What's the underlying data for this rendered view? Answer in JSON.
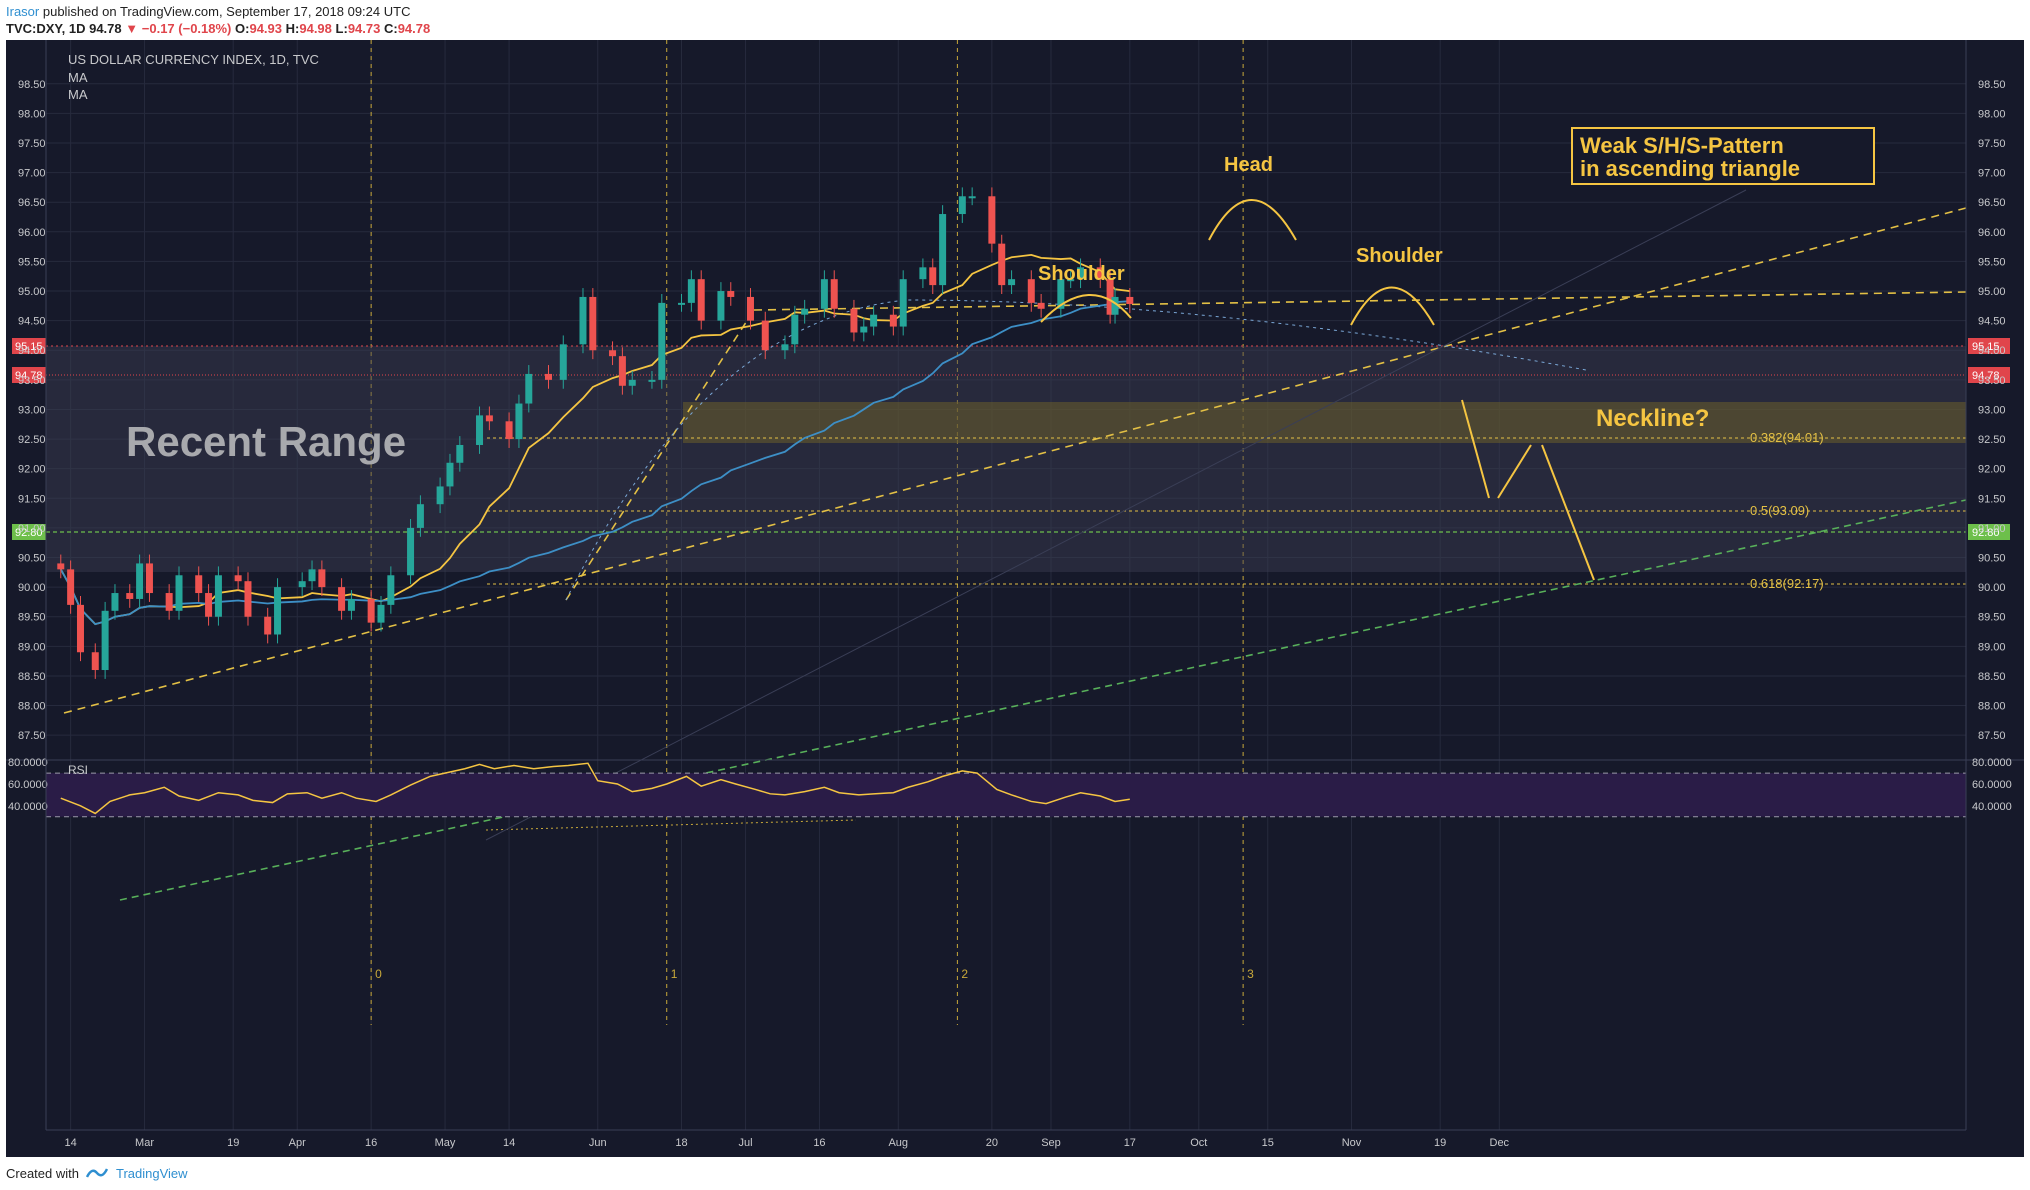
{
  "header": {
    "author": "Irasor",
    "published": "published on TradingView.com, September 17, 2018 09:24 UTC",
    "symbol": "TVC:DXY, 1D",
    "last": "94.78",
    "change": "−0.17 (−0.18%)",
    "o_label": "O:",
    "o_value": "94.93",
    "h_label": "H:",
    "h_value": "94.98",
    "l_label": "L:",
    "l_value": "94.73",
    "c_label": "C:",
    "c_value": "94.78"
  },
  "legend": {
    "title": "US DOLLAR CURRENCY INDEX, 1D, TVC",
    "ma1": "MA",
    "ma2": "MA"
  },
  "footer": {
    "created_with": "Created with",
    "brand": "TradingView"
  },
  "colors": {
    "background": "#16192a",
    "bull": "#26a69a",
    "bear": "#ef5350",
    "ma_fast": "#f5c542",
    "ma_slow": "#3d8fc6",
    "annotation": "#f5c542",
    "rsi_band": "#2a1c47"
  },
  "chart_data": [
    {
      "type": "candlestick",
      "title": "US DOLLAR CURRENCY INDEX, 1D, TVC",
      "ylim": [
        87.3,
        98.8
      ],
      "x_range": [
        "2018-02-09",
        "2018-12-05"
      ],
      "y_ticks": [
        "98.50",
        "98.00",
        "97.50",
        "97.00",
        "96.50",
        "96.00",
        "95.50",
        "95.00",
        "94.50",
        "94.00",
        "93.50",
        "93.00",
        "92.50",
        "92.00",
        "91.50",
        "91.00",
        "90.50",
        "90.00",
        "89.50",
        "89.00",
        "88.50",
        "88.00",
        "87.50"
      ],
      "x_ticks": [
        {
          "date": "2018-02-14",
          "label": "14"
        },
        {
          "date": "2018-03-01",
          "label": "Mar"
        },
        {
          "date": "2018-03-19",
          "label": "19"
        },
        {
          "date": "2018-04-01",
          "label": "Apr"
        },
        {
          "date": "2018-04-16",
          "label": "16"
        },
        {
          "date": "2018-05-01",
          "label": "May"
        },
        {
          "date": "2018-05-14",
          "label": "14"
        },
        {
          "date": "2018-06-01",
          "label": "Jun"
        },
        {
          "date": "2018-06-18",
          "label": "18"
        },
        {
          "date": "2018-07-01",
          "label": "Jul"
        },
        {
          "date": "2018-07-16",
          "label": "16"
        },
        {
          "date": "2018-08-01",
          "label": "Aug"
        },
        {
          "date": "2018-08-20",
          "label": "20"
        },
        {
          "date": "2018-09-01",
          "label": "Sep"
        },
        {
          "date": "2018-09-17",
          "label": "17"
        },
        {
          "date": "2018-10-01",
          "label": "Oct"
        },
        {
          "date": "2018-10-15",
          "label": "15"
        },
        {
          "date": "2018-11-01",
          "label": "Nov"
        },
        {
          "date": "2018-11-19",
          "label": "19"
        },
        {
          "date": "2018-12-01",
          "label": "Dec"
        }
      ],
      "series_close": [
        [
          "2018-02-12",
          90.3
        ],
        [
          "2018-02-14",
          89.7
        ],
        [
          "2018-02-16",
          88.9
        ],
        [
          "2018-02-19",
          88.6
        ],
        [
          "2018-02-21",
          89.6
        ],
        [
          "2018-02-23",
          89.9
        ],
        [
          "2018-02-26",
          89.8
        ],
        [
          "2018-02-28",
          90.4
        ],
        [
          "2018-03-02",
          89.9
        ],
        [
          "2018-03-06",
          89.6
        ],
        [
          "2018-03-08",
          90.2
        ],
        [
          "2018-03-12",
          89.9
        ],
        [
          "2018-03-14",
          89.5
        ],
        [
          "2018-03-16",
          90.2
        ],
        [
          "2018-03-20",
          90.1
        ],
        [
          "2018-03-22",
          89.5
        ],
        [
          "2018-03-26",
          89.2
        ],
        [
          "2018-03-28",
          90.0
        ],
        [
          "2018-04-02",
          90.1
        ],
        [
          "2018-04-04",
          90.3
        ],
        [
          "2018-04-06",
          90.0
        ],
        [
          "2018-04-10",
          89.6
        ],
        [
          "2018-04-12",
          89.8
        ],
        [
          "2018-04-16",
          89.4
        ],
        [
          "2018-04-18",
          89.7
        ],
        [
          "2018-04-20",
          90.2
        ],
        [
          "2018-04-24",
          91.0
        ],
        [
          "2018-04-26",
          91.4
        ],
        [
          "2018-04-30",
          91.7
        ],
        [
          "2018-05-02",
          92.1
        ],
        [
          "2018-05-04",
          92.4
        ],
        [
          "2018-05-08",
          92.9
        ],
        [
          "2018-05-10",
          92.8
        ],
        [
          "2018-05-14",
          92.5
        ],
        [
          "2018-05-16",
          93.1
        ],
        [
          "2018-05-18",
          93.6
        ],
        [
          "2018-05-22",
          93.5
        ],
        [
          "2018-05-25",
          94.1
        ],
        [
          "2018-05-29",
          94.9
        ],
        [
          "2018-05-31",
          94.0
        ],
        [
          "2018-06-04",
          93.9
        ],
        [
          "2018-06-06",
          93.4
        ],
        [
          "2018-06-08",
          93.5
        ],
        [
          "2018-06-12",
          93.5
        ],
        [
          "2018-06-14",
          94.8
        ],
        [
          "2018-06-18",
          94.8
        ],
        [
          "2018-06-20",
          95.2
        ],
        [
          "2018-06-22",
          94.5
        ],
        [
          "2018-06-26",
          95.0
        ],
        [
          "2018-06-28",
          94.9
        ],
        [
          "2018-07-02",
          94.5
        ],
        [
          "2018-07-05",
          94.0
        ],
        [
          "2018-07-09",
          94.1
        ],
        [
          "2018-07-11",
          94.6
        ],
        [
          "2018-07-13",
          94.7
        ],
        [
          "2018-07-17",
          95.2
        ],
        [
          "2018-07-19",
          94.7
        ],
        [
          "2018-07-23",
          94.3
        ],
        [
          "2018-07-25",
          94.4
        ],
        [
          "2018-07-27",
          94.6
        ],
        [
          "2018-07-31",
          94.4
        ],
        [
          "2018-08-02",
          95.2
        ],
        [
          "2018-08-06",
          95.4
        ],
        [
          "2018-08-08",
          95.1
        ],
        [
          "2018-08-10",
          96.3
        ],
        [
          "2018-08-14",
          96.6
        ],
        [
          "2018-08-16",
          96.6
        ],
        [
          "2018-08-20",
          95.8
        ],
        [
          "2018-08-22",
          95.1
        ],
        [
          "2018-08-24",
          95.2
        ],
        [
          "2018-08-28",
          94.8
        ],
        [
          "2018-08-30",
          94.7
        ],
        [
          "2018-09-03",
          95.2
        ],
        [
          "2018-09-05",
          95.2
        ],
        [
          "2018-09-07",
          95.4
        ],
        [
          "2018-09-11",
          95.2
        ],
        [
          "2018-09-13",
          94.6
        ],
        [
          "2018-09-14",
          94.9
        ],
        [
          "2018-09-17",
          94.78
        ]
      ]
    },
    {
      "type": "line",
      "title": "RSI",
      "ylim": [
        27,
        82
      ],
      "y_ticks": [
        "80.0000",
        "60.0000",
        "40.0000"
      ],
      "levels": [
        70,
        30
      ],
      "values": [
        [
          "2018-02-12",
          47
        ],
        [
          "2018-02-16",
          40
        ],
        [
          "2018-02-19",
          33
        ],
        [
          "2018-02-22",
          44
        ],
        [
          "2018-02-26",
          50
        ],
        [
          "2018-03-01",
          52
        ],
        [
          "2018-03-05",
          57
        ],
        [
          "2018-03-08",
          49
        ],
        [
          "2018-03-12",
          45
        ],
        [
          "2018-03-16",
          52
        ],
        [
          "2018-03-20",
          50
        ],
        [
          "2018-03-23",
          45
        ],
        [
          "2018-03-27",
          43
        ],
        [
          "2018-03-30",
          51
        ],
        [
          "2018-04-03",
          52
        ],
        [
          "2018-04-06",
          47
        ],
        [
          "2018-04-10",
          52
        ],
        [
          "2018-04-13",
          47
        ],
        [
          "2018-04-17",
          44
        ],
        [
          "2018-04-20",
          50
        ],
        [
          "2018-04-24",
          59
        ],
        [
          "2018-04-28",
          67
        ],
        [
          "2018-05-02",
          71
        ],
        [
          "2018-05-05",
          74
        ],
        [
          "2018-05-08",
          78
        ],
        [
          "2018-05-11",
          74
        ],
        [
          "2018-05-15",
          77
        ],
        [
          "2018-05-19",
          74
        ],
        [
          "2018-05-23",
          76
        ],
        [
          "2018-05-26",
          77
        ],
        [
          "2018-05-30",
          79
        ],
        [
          "2018-06-01",
          63
        ],
        [
          "2018-06-05",
          60
        ],
        [
          "2018-06-08",
          53
        ],
        [
          "2018-06-12",
          56
        ],
        [
          "2018-06-15",
          60
        ],
        [
          "2018-06-19",
          67
        ],
        [
          "2018-06-22",
          58
        ],
        [
          "2018-06-26",
          64
        ],
        [
          "2018-06-29",
          60
        ],
        [
          "2018-07-03",
          55
        ],
        [
          "2018-07-06",
          51
        ],
        [
          "2018-07-09",
          50
        ],
        [
          "2018-07-13",
          53
        ],
        [
          "2018-07-17",
          57
        ],
        [
          "2018-07-20",
          52
        ],
        [
          "2018-07-24",
          50
        ],
        [
          "2018-07-27",
          51
        ],
        [
          "2018-07-31",
          52
        ],
        [
          "2018-08-03",
          57
        ],
        [
          "2018-08-07",
          62
        ],
        [
          "2018-08-10",
          67
        ],
        [
          "2018-08-14",
          72
        ],
        [
          "2018-08-17",
          70
        ],
        [
          "2018-08-21",
          55
        ],
        [
          "2018-08-24",
          50
        ],
        [
          "2018-08-28",
          44
        ],
        [
          "2018-08-31",
          42
        ],
        [
          "2018-09-04",
          48
        ],
        [
          "2018-09-07",
          52
        ],
        [
          "2018-09-11",
          49
        ],
        [
          "2018-09-14",
          44
        ],
        [
          "2018-09-17",
          46
        ]
      ]
    }
  ],
  "annotations": {
    "pattern_box_line1": "Weak S/H/S-Pattern",
    "pattern_box_line2": "in ascending triangle",
    "head": "Head",
    "shoulder_left": "Shoulder",
    "shoulder_right": "Shoulder",
    "recent_range": "Recent Range",
    "neckline": "Neckline?",
    "fib_382": "0.382(94.01)",
    "fib_5": "0.5(93.09)",
    "fib_618": "0.618(92.17)",
    "cycle_0": "0",
    "cycle_1": "1",
    "cycle_2": "2",
    "cycle_3": "3",
    "price_badge_high": "95.15",
    "price_badge_last": "94.78",
    "price_badge_low": "92.80",
    "rsi_label": "RSI"
  }
}
